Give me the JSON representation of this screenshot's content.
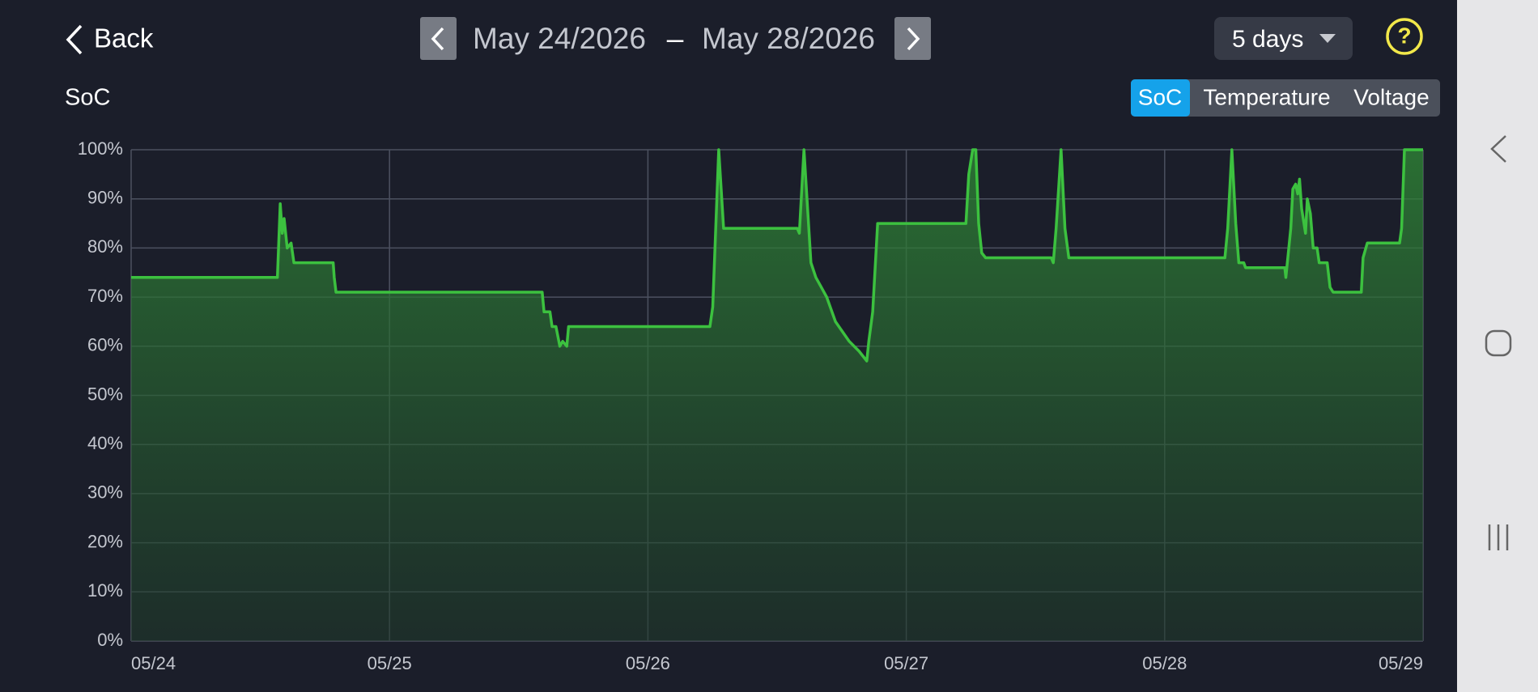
{
  "header": {
    "back": "Back",
    "date_start": "May 24/2026",
    "date_sep": "–",
    "date_end": "May 28/2026",
    "range": "5 days",
    "help": "?"
  },
  "tabs": [
    "SoC",
    "Temperature",
    "Voltage"
  ],
  "chart_data": {
    "type": "line",
    "title": "SoC",
    "color": "#3cc13f",
    "fill": true,
    "grid": true,
    "x": [
      0,
      0.566,
      0.577,
      0.585,
      0.592,
      0.604,
      0.619,
      0.63,
      0.782,
      0.786,
      0.793,
      1.591,
      1.598,
      1.621,
      1.629,
      1.644,
      1.659,
      1.67,
      1.686,
      1.693,
      2.24,
      2.251,
      2.274,
      2.293,
      2.578,
      2.586,
      2.604,
      2.631,
      2.65,
      2.692,
      2.726,
      2.779,
      2.817,
      2.847,
      2.855,
      2.87,
      2.889,
      3.231,
      3.242,
      3.257,
      3.269,
      3.28,
      3.292,
      3.307,
      3.561,
      3.569,
      3.58,
      3.599,
      3.614,
      3.629,
      4.233,
      4.244,
      4.26,
      4.275,
      4.287,
      4.306,
      4.313,
      4.465,
      4.469,
      4.488,
      4.496,
      4.507,
      4.515,
      4.522,
      4.53,
      4.545,
      4.552,
      4.564,
      4.575,
      4.59,
      4.598,
      4.629,
      4.64,
      4.652,
      4.761,
      4.768,
      4.784,
      4.909,
      4.917,
      4.928,
      5
    ],
    "values": [
      74,
      74,
      89,
      83,
      86,
      80,
      81,
      77,
      77,
      74,
      71,
      71,
      67,
      67,
      64,
      64,
      60,
      61,
      60,
      64,
      64,
      68,
      100,
      84,
      84,
      83,
      100,
      77,
      74,
      70,
      65,
      61,
      59,
      57,
      61,
      67,
      85,
      85,
      95,
      100,
      100,
      85,
      79,
      78,
      78,
      77,
      84,
      100,
      84,
      78,
      78,
      84,
      100,
      85,
      77,
      77,
      76,
      76,
      74,
      84,
      92,
      93,
      91,
      94,
      88,
      83,
      90,
      87,
      80,
      80,
      77,
      77,
      72,
      71,
      71,
      78,
      81,
      81,
      84,
      100,
      100
    ],
    "xlim": [
      0,
      5
    ],
    "xticks": [
      {
        "value": 0,
        "label": "05/24"
      },
      {
        "value": 1,
        "label": "05/25"
      },
      {
        "value": 2,
        "label": "05/26"
      },
      {
        "value": 3,
        "label": "05/27"
      },
      {
        "value": 4,
        "label": "05/28"
      },
      {
        "value": 5,
        "label": "05/29"
      }
    ],
    "ylim": [
      0,
      100
    ],
    "yticks": [
      {
        "value": 0,
        "label": "0%"
      },
      {
        "value": 10,
        "label": "10%"
      },
      {
        "value": 20,
        "label": "20%"
      },
      {
        "value": 30,
        "label": "30%"
      },
      {
        "value": 40,
        "label": "40%"
      },
      {
        "value": 50,
        "label": "50%"
      },
      {
        "value": 60,
        "label": "60%"
      },
      {
        "value": 70,
        "label": "70%"
      },
      {
        "value": 80,
        "label": "80%"
      },
      {
        "value": 90,
        "label": "90%"
      },
      {
        "value": 100,
        "label": "100%"
      }
    ]
  }
}
